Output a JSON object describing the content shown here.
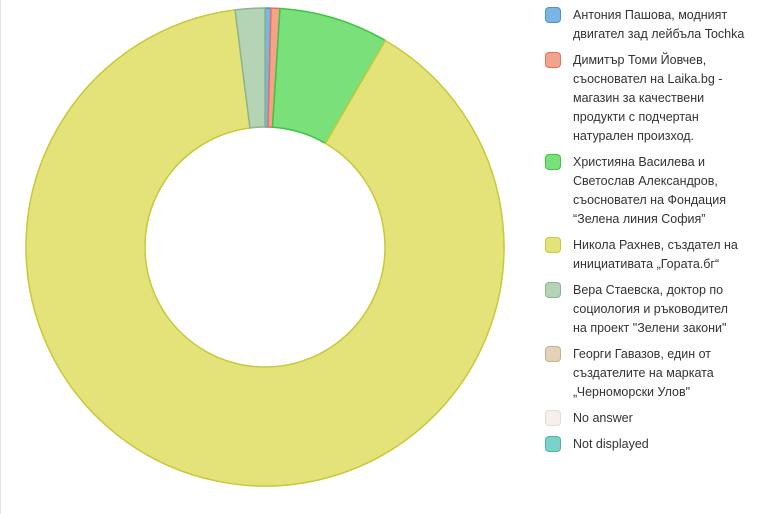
{
  "chart_data": {
    "type": "pie",
    "donut": true,
    "title": "",
    "legend_position": "right",
    "categories": [
      "Антония Пашова, модният двигател зад лейбъла Tochka",
      "Димитър Томи Йовчев, съосновател на Laika.bg - магазин за качествени продукти с подчертан натурален произход.",
      "Християна Василева и Светослав Александров, съосновател на Фондация “Зелена линия София”",
      "Никола Рахнев, създател на инициативата „Гората.бг“",
      "Вера Стаевска, доктор по социология и ръководител на проект \"Зелени закони\"",
      "Георги Гавазов, един от създателите на марката „Черноморски Улов\"",
      "No answer",
      "Not displayed"
    ],
    "values": [
      0.4,
      0.6,
      7.4,
      89.6,
      2.0,
      0.0,
      0.0,
      0.0
    ],
    "colors": [
      "#7ab5e3",
      "#f3a389",
      "#7ae07a",
      "#e3e37a",
      "#b5d3b5",
      "#e3d2b5",
      "#f7f0ea",
      "#7ad3c8"
    ],
    "borders": [
      "#4f93c4",
      "#e5735a",
      "#3fc43f",
      "#c8c83a",
      "#8cb58c",
      "#c7b08f",
      "#e8dcd0",
      "#4fb3a6"
    ]
  }
}
